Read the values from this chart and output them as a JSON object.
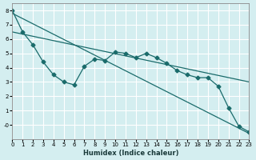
{
  "xlabel": "Humidex (Indice chaleur)",
  "ylabel": "",
  "bg_color": "#d4eef0",
  "grid_color": "#ffffff",
  "line_color": "#1a6b6b",
  "xlim": [
    0,
    23
  ],
  "ylim": [
    -1,
    8.5
  ],
  "yticks": [
    0,
    1,
    2,
    3,
    4,
    5,
    6,
    7,
    8
  ],
  "ytick_labels": [
    "-0",
    "1",
    "2",
    "3",
    "4",
    "5",
    "6",
    "7",
    "8"
  ],
  "xticks": [
    0,
    1,
    2,
    3,
    4,
    5,
    6,
    7,
    8,
    9,
    10,
    11,
    12,
    13,
    14,
    15,
    16,
    17,
    18,
    19,
    20,
    21,
    22,
    23
  ],
  "line1_x": [
    0,
    1,
    2,
    3,
    4,
    5,
    6,
    7,
    8,
    9,
    10,
    11,
    12,
    13,
    14,
    15,
    16,
    17,
    18,
    19,
    20,
    21,
    22,
    23
  ],
  "line1_y": [
    8.0,
    6.5,
    5.6,
    4.4,
    3.5,
    3.0,
    2.8,
    4.1,
    4.6,
    4.5,
    5.1,
    5.0,
    4.7,
    5.0,
    4.7,
    4.3,
    3.8,
    3.5,
    3.3,
    3.3,
    2.7,
    1.2,
    -0.1,
    -0.5
  ],
  "line2_x": [
    0,
    23
  ],
  "line2_y": [
    7.8,
    -0.6
  ],
  "line3_x": [
    0,
    23
  ],
  "line3_y": [
    6.5,
    3.0
  ]
}
